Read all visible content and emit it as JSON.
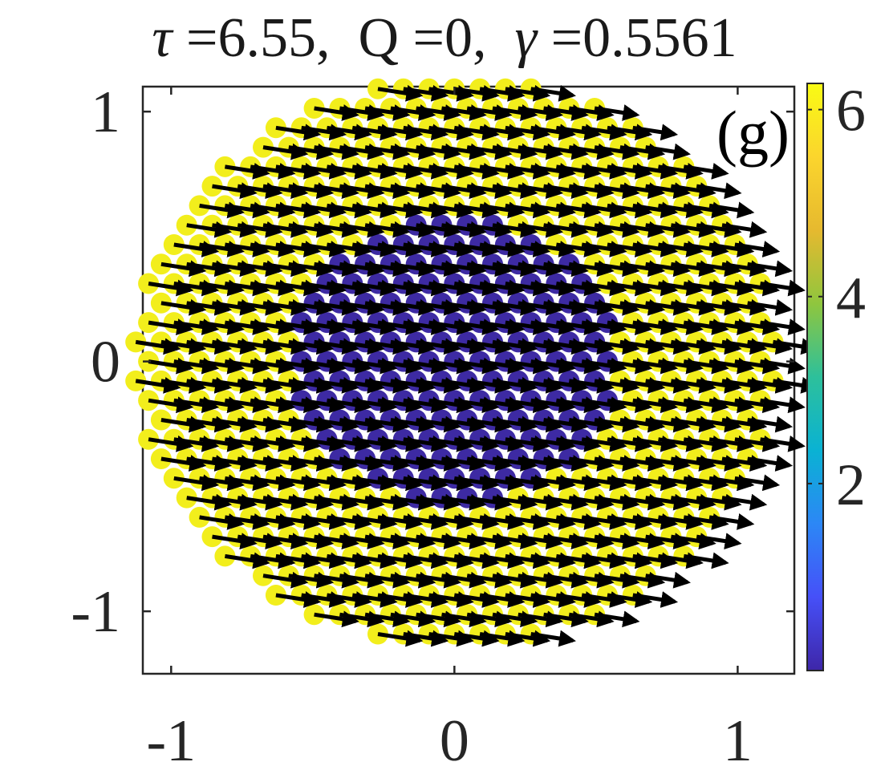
{
  "title": {
    "tau_symbol": "τ",
    "tau_value": "6.55",
    "q_label": "Q",
    "q_value": "0",
    "gamma_symbol": "γ",
    "gamma_value": "0.5561"
  },
  "chart_data": {
    "type": "scatter",
    "title": "τ =6.55,  Q =0,  γ =0.5561",
    "panel_label": "(g)",
    "xlabel": "",
    "ylabel": "",
    "xlim": [
      -1.1,
      1.2
    ],
    "ylim": [
      -1.25,
      1.1
    ],
    "x_ticks": [
      -1,
      0,
      1
    ],
    "x_tick_labels": [
      "-1",
      "0",
      "1"
    ],
    "y_ticks": [
      -1,
      0,
      1
    ],
    "y_tick_labels": [
      "-1",
      "0",
      "1"
    ],
    "grid": false,
    "lattice": {
      "description": "hexagonal disk of spins, each drawn as a colored dot with a black arrow",
      "radius": 1.13,
      "spacing": 0.09,
      "inner_radius": 0.57,
      "arrow_angle_deg": -10,
      "arrow_length": 0.15
    },
    "series": [
      {
        "value": 0.25,
        "color": "#3d2aa3"
      },
      {
        "value": 6.28,
        "color": "#f2ee1c"
      }
    ],
    "colorbar": {
      "range": [
        0,
        6.28
      ],
      "ticks": [
        2,
        4,
        6
      ],
      "tick_labels": [
        "2",
        "4",
        "6"
      ],
      "colormap": "parula",
      "stops": [
        "#3e26a8",
        "#4650f8",
        "#2c87f6",
        "#0ab2d3",
        "#2dc09b",
        "#8fc63e",
        "#e6b92f",
        "#fbd52d",
        "#f9fb14"
      ]
    }
  }
}
